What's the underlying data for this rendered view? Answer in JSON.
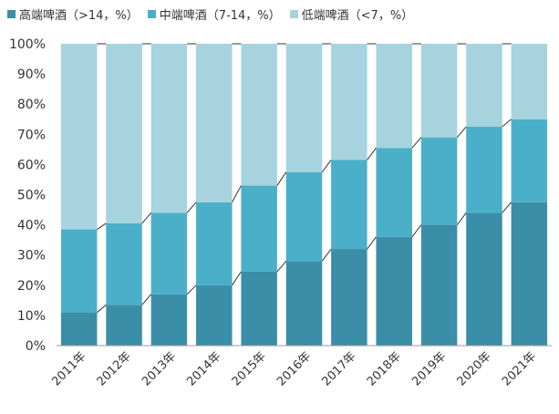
{
  "chart_data": {
    "type": "bar",
    "stacked": true,
    "categories": [
      "2011年",
      "2012年",
      "2013年",
      "2014年",
      "2015年",
      "2016年",
      "2017年",
      "2018年",
      "2019年",
      "2020年",
      "2021年"
    ],
    "series": [
      {
        "name": "高端啤酒（>14，%）",
        "color": "#3a8ea7",
        "values": [
          11,
          13.5,
          17,
          20,
          24.5,
          28,
          32,
          36,
          40,
          44,
          47.5
        ]
      },
      {
        "name": "中端啤酒（7-14，%）",
        "color": "#4aafc8",
        "values": [
          27.5,
          27,
          27,
          27.5,
          28.5,
          29.5,
          29.5,
          29.5,
          29,
          28.5,
          27.5
        ]
      },
      {
        "name": "低端啤酒（<7，%）",
        "color": "#a6d3de",
        "values": [
          61.5,
          59.5,
          56,
          52.5,
          47,
          42.5,
          38.5,
          34.5,
          31,
          27.5,
          25
        ]
      }
    ],
    "ylim": [
      0,
      100
    ],
    "yticks": [
      "0%",
      "10%",
      "20%",
      "30%",
      "40%",
      "50%",
      "60%",
      "70%",
      "80%",
      "90%",
      "100%"
    ],
    "legend": "top",
    "grid": false,
    "connector_lines": true
  }
}
